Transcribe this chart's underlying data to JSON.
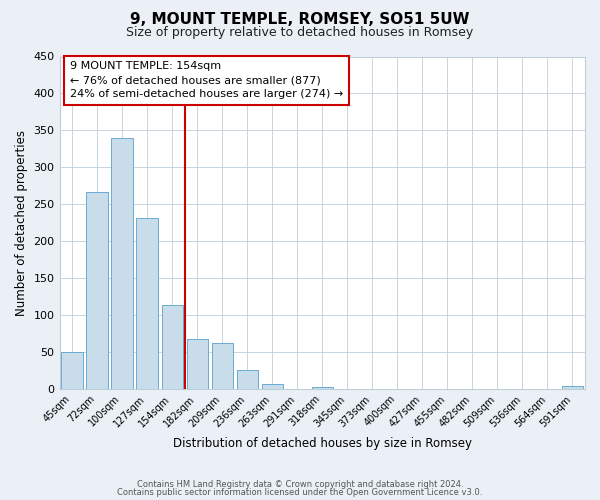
{
  "title": "9, MOUNT TEMPLE, ROMSEY, SO51 5UW",
  "subtitle": "Size of property relative to detached houses in Romsey",
  "xlabel": "Distribution of detached houses by size in Romsey",
  "ylabel": "Number of detached properties",
  "bar_labels": [
    "45sqm",
    "72sqm",
    "100sqm",
    "127sqm",
    "154sqm",
    "182sqm",
    "209sqm",
    "236sqm",
    "263sqm",
    "291sqm",
    "318sqm",
    "345sqm",
    "373sqm",
    "400sqm",
    "427sqm",
    "455sqm",
    "482sqm",
    "509sqm",
    "536sqm",
    "564sqm",
    "591sqm"
  ],
  "bar_values": [
    50,
    267,
    340,
    232,
    113,
    68,
    62,
    25,
    7,
    0,
    2,
    0,
    0,
    0,
    0,
    0,
    0,
    0,
    0,
    0,
    4
  ],
  "bar_color": "#c9dcea",
  "bar_edge_color": "#6aaad4",
  "vline_color": "#cc0000",
  "annotation_title": "9 MOUNT TEMPLE: 154sqm",
  "annotation_line1": "← 76% of detached houses are smaller (877)",
  "annotation_line2": "24% of semi-detached houses are larger (274) →",
  "annotation_box_color": "#ffffff",
  "annotation_box_edge": "#cc0000",
  "ylim": [
    0,
    450
  ],
  "yticks": [
    0,
    50,
    100,
    150,
    200,
    250,
    300,
    350,
    400,
    450
  ],
  "footer1": "Contains HM Land Registry data © Crown copyright and database right 2024.",
  "footer2": "Contains public sector information licensed under the Open Government Licence v3.0.",
  "bg_color": "#eaf0f6",
  "plot_bg_color": "#ffffff",
  "grid_color": "#bfcdd9"
}
